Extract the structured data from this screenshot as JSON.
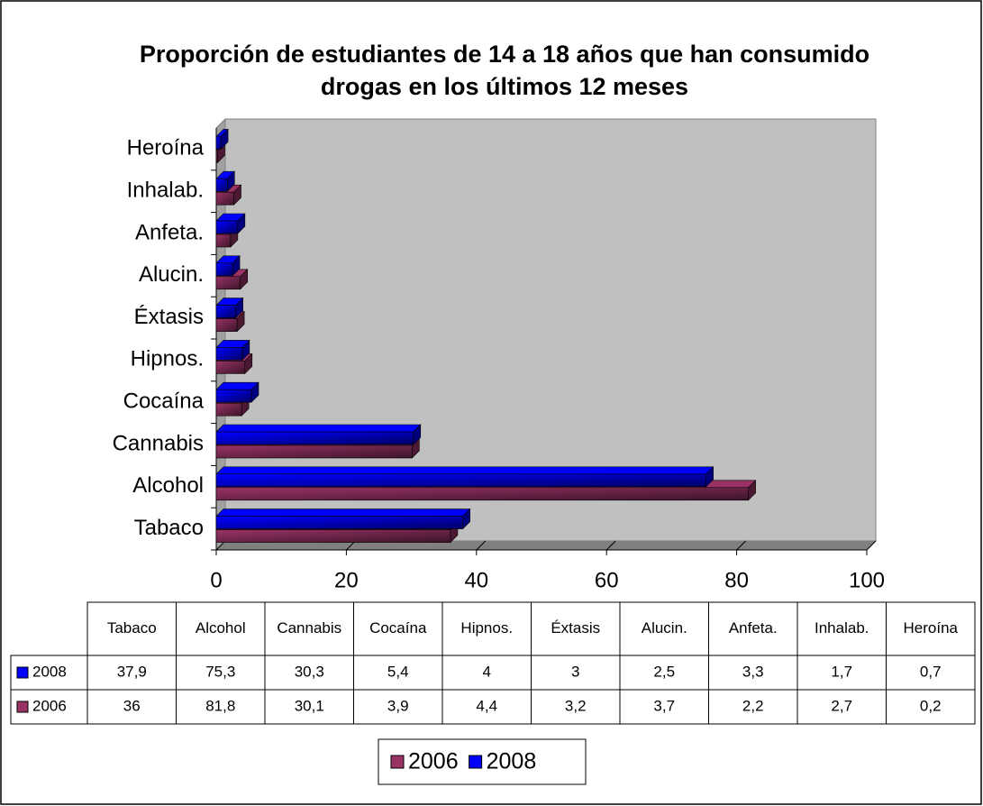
{
  "chart_data": {
    "type": "bar",
    "orientation": "horizontal",
    "title": "Proporción de estudiantes de 14 a 18 años que han consumido drogas en los últimos 12 meses",
    "categories": [
      "Tabaco",
      "Alcohol",
      "Cannabis",
      "Cocaína",
      "Hipnos.",
      "Éxtasis",
      "Alucin.",
      "Anfeta.",
      "Inhalab.",
      "Heroína"
    ],
    "series": [
      {
        "name": "2006",
        "color": "#993366",
        "values": [
          36,
          81.8,
          30.1,
          3.9,
          4.4,
          3.2,
          3.7,
          2.2,
          2.7,
          0.2
        ],
        "value_labels": [
          "36",
          "81,8",
          "30,1",
          "3,9",
          "4,4",
          "3,2",
          "3,7",
          "2,2",
          "2,7",
          "0,2"
        ]
      },
      {
        "name": "2008",
        "color": "#0000ff",
        "values": [
          37.9,
          75.3,
          30.3,
          5.4,
          4,
          3,
          2.5,
          3.3,
          1.7,
          0.7
        ],
        "value_labels": [
          "37,9",
          "75,3",
          "30,3",
          "5,4",
          "4",
          "3",
          "2,5",
          "3,3",
          "1,7",
          "0,7"
        ]
      }
    ],
    "xlim": [
      0,
      100
    ],
    "xticks": [
      0,
      20,
      40,
      60,
      80,
      100
    ],
    "legend": "bottom",
    "data_table": true
  }
}
